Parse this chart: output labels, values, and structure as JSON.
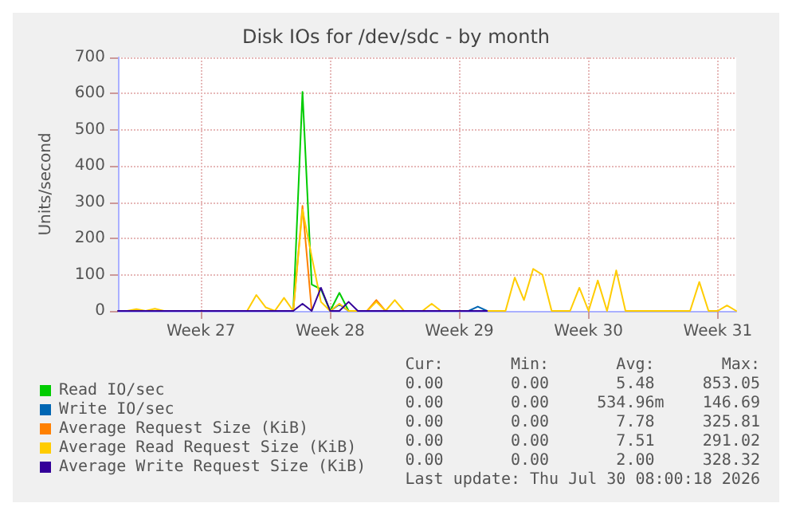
{
  "chart_data": {
    "type": "line",
    "title": "Disk IOs for /dev/sdc - by month",
    "ylabel": "Units/second",
    "categories": [
      null,
      null,
      null,
      null,
      null,
      null,
      null,
      null,
      null,
      "Week 27",
      null,
      null,
      null,
      null,
      null,
      null,
      null,
      null,
      null,
      null,
      null,
      null,
      null,
      "Week 28",
      null,
      null,
      null,
      null,
      null,
      null,
      null,
      null,
      null,
      null,
      null,
      null,
      null,
      "Week 29",
      null,
      null,
      null,
      null,
      null,
      null,
      null,
      null,
      null,
      null,
      null,
      null,
      null,
      "Week 30",
      null,
      null,
      null,
      null,
      null,
      null,
      null,
      null,
      null,
      null,
      null,
      null,
      null,
      "Week 31",
      null,
      null
    ],
    "ylim": [
      0,
      700
    ],
    "yticks": [
      0,
      100,
      200,
      300,
      400,
      500,
      600,
      700
    ],
    "grid": true,
    "legend": "bottom left",
    "marker": "none",
    "line_style": "solid",
    "series": [
      {
        "name": "Read IO/sec",
        "color": "#00cc00",
        "values": [
          null,
          null,
          null,
          null,
          null,
          null,
          null,
          null,
          null,
          null,
          null,
          null,
          null,
          null,
          null,
          null,
          null,
          null,
          null,
          0,
          605,
          73,
          60,
          0,
          50,
          0,
          null,
          null,
          null,
          null,
          null,
          null,
          null,
          null,
          null,
          null,
          null,
          null,
          null,
          null,
          null,
          null,
          null,
          null,
          null,
          null,
          null,
          null,
          null,
          null,
          null,
          null,
          null,
          null,
          null,
          null,
          null,
          null,
          null,
          null,
          null,
          null,
          null,
          null,
          null,
          null,
          null,
          null
        ]
      },
      {
        "name": "Write IO/sec",
        "color": "#0066b3",
        "values": [
          null,
          null,
          null,
          null,
          null,
          null,
          null,
          null,
          null,
          null,
          null,
          null,
          null,
          null,
          null,
          null,
          null,
          null,
          null,
          null,
          null,
          null,
          null,
          0,
          18,
          0,
          null,
          null,
          null,
          null,
          null,
          null,
          null,
          null,
          null,
          null,
          null,
          null,
          0,
          12,
          0,
          null,
          null,
          null,
          null,
          null,
          null,
          null,
          null,
          null,
          null,
          null,
          null,
          null,
          null,
          null,
          null,
          null,
          null,
          null,
          null,
          null,
          null,
          null,
          null,
          null,
          null,
          null
        ]
      },
      {
        "name": "Average Request Size (KiB)",
        "color": "#ff8000",
        "values": [
          null,
          null,
          null,
          null,
          null,
          null,
          null,
          null,
          null,
          null,
          null,
          null,
          null,
          null,
          null,
          null,
          null,
          null,
          null,
          0,
          290,
          0,
          null,
          null,
          null,
          null,
          null,
          0,
          30,
          0,
          null,
          null,
          null,
          null,
          null,
          null,
          null,
          null,
          null,
          null,
          null,
          null,
          null,
          null,
          null,
          null,
          null,
          null,
          null,
          null,
          null,
          null,
          null,
          null,
          null,
          null,
          null,
          null,
          null,
          null,
          null,
          null,
          null,
          null,
          null,
          null,
          null,
          null
        ]
      },
      {
        "name": "Average Read Request Size (KiB)",
        "color": "#ffcc00",
        "values": [
          0,
          0,
          5,
          0,
          6,
          0,
          0,
          0,
          0,
          0,
          0,
          0,
          0,
          0,
          0,
          44,
          10,
          0,
          36,
          0,
          280,
          150,
          25,
          0,
          20,
          0,
          0,
          0,
          25,
          0,
          30,
          0,
          0,
          0,
          20,
          0,
          0,
          0,
          0,
          0,
          0,
          0,
          0,
          92,
          30,
          116,
          100,
          0,
          0,
          0,
          64,
          0,
          84,
          0,
          112,
          0,
          0,
          0,
          0,
          0,
          0,
          0,
          0,
          80,
          0,
          0,
          15,
          0
        ]
      },
      {
        "name": "Average Write Request Size (KiB)",
        "color": "#330099",
        "values": [
          0,
          0,
          0,
          0,
          0,
          0,
          0,
          0,
          0,
          0,
          0,
          0,
          0,
          0,
          0,
          0,
          0,
          0,
          0,
          0,
          20,
          0,
          64,
          0,
          0,
          25,
          0,
          0,
          0,
          0,
          0,
          0,
          0,
          0,
          0,
          0,
          0,
          0,
          0,
          0,
          0,
          null,
          null,
          null,
          null,
          null,
          null,
          null,
          null,
          null,
          null,
          null,
          null,
          null,
          null,
          null,
          null,
          null,
          null,
          null,
          null,
          null,
          null,
          null,
          null,
          null,
          null,
          null
        ]
      }
    ],
    "annotations": [
      "Cur:       Min:       Avg:       Max:",
      "0.00       0.00       5.48     853.05",
      "0.00       0.00     534.96m    146.69",
      "0.00       0.00       7.78     325.81",
      "0.00       0.00       7.51     291.02",
      "0.00       0.00       2.00     328.32",
      "Last update: Thu Jul 30 08:00:18 2026"
    ]
  }
}
